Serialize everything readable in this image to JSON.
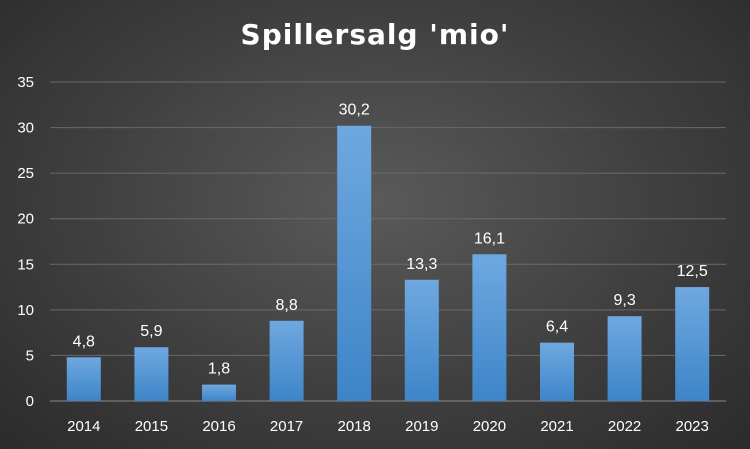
{
  "chart_data": {
    "type": "bar",
    "title": "Spillersalg 'mio'",
    "categories": [
      "2014",
      "2015",
      "2016",
      "2017",
      "2018",
      "2019",
      "2020",
      "2021",
      "2022",
      "2023"
    ],
    "values": [
      4.8,
      5.9,
      1.8,
      8.8,
      30.2,
      13.3,
      16.1,
      6.4,
      9.3,
      12.5
    ],
    "data_labels": [
      "4,8",
      "5,9",
      "1,8",
      "8,8",
      "30,2",
      "13,3",
      "16,1",
      "6,4",
      "9,3",
      "12,5"
    ],
    "ylim": [
      0,
      35
    ],
    "yticks": [
      "0",
      "5",
      "10",
      "15",
      "20",
      "25",
      "30",
      "35"
    ],
    "grid": true,
    "bar_color": "#5b9bd5"
  }
}
